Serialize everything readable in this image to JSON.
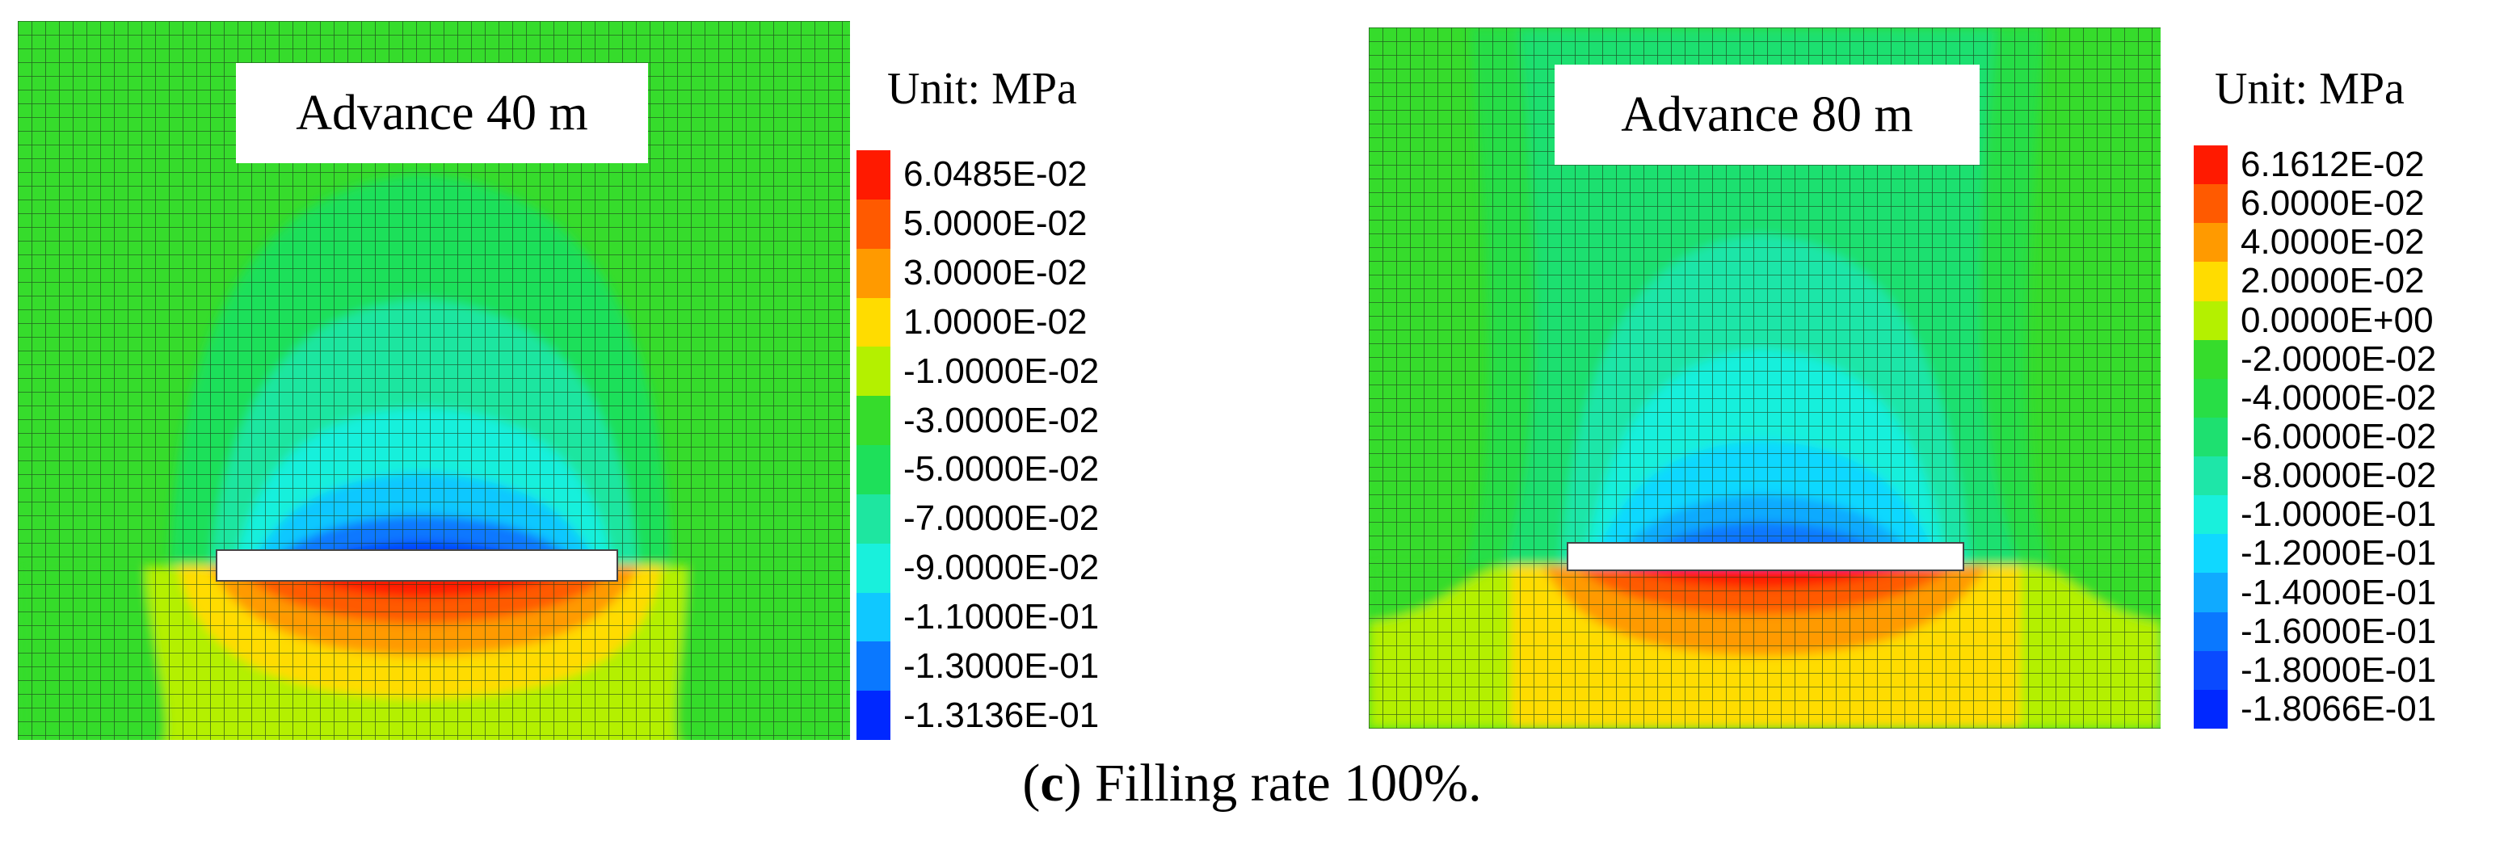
{
  "caption": {
    "marker": "c",
    "text": "Filling rate 100%."
  },
  "panels": [
    {
      "label": "Advance 40 m",
      "unit": "Unit: MPa",
      "legend": [
        {
          "value": "6.0485E-02",
          "color": "#ff1a00"
        },
        {
          "value": "5.0000E-02",
          "color": "#ff5a00"
        },
        {
          "value": "3.0000E-02",
          "color": "#ff9a00"
        },
        {
          "value": "1.0000E-02",
          "color": "#ffdc00"
        },
        {
          "value": "-1.0000E-02",
          "color": "#b4f000"
        },
        {
          "value": "-3.0000E-02",
          "color": "#36dc2c"
        },
        {
          "value": "-5.0000E-02",
          "color": "#1ee05a"
        },
        {
          "value": "-7.0000E-02",
          "color": "#1ee6a0"
        },
        {
          "value": "-9.0000E-02",
          "color": "#19f0dc"
        },
        {
          "value": "-1.1000E-01",
          "color": "#10c8ff"
        },
        {
          "value": "-1.3000E-01",
          "color": "#0a78ff"
        },
        {
          "value": "-1.3136E-01",
          "color": "#0028ff"
        }
      ]
    },
    {
      "label": "Advance 80 m",
      "unit": "Unit: MPa",
      "legend": [
        {
          "value": "6.1612E-02",
          "color": "#ff1a00"
        },
        {
          "value": "6.0000E-02",
          "color": "#ff5a00"
        },
        {
          "value": "4.0000E-02",
          "color": "#ff9a00"
        },
        {
          "value": "2.0000E-02",
          "color": "#ffdc00"
        },
        {
          "value": "0.0000E+00",
          "color": "#b4f000"
        },
        {
          "value": "-2.0000E-02",
          "color": "#36dc2c"
        },
        {
          "value": "-4.0000E-02",
          "color": "#28de46"
        },
        {
          "value": "-6.0000E-02",
          "color": "#1ee070"
        },
        {
          "value": "-8.0000E-02",
          "color": "#1ee6a8"
        },
        {
          "value": "-1.0000E-01",
          "color": "#19f0dc"
        },
        {
          "value": "-1.2000E-01",
          "color": "#10d8ff"
        },
        {
          "value": "-1.4000E-01",
          "color": "#10aaff"
        },
        {
          "value": "-1.6000E-01",
          "color": "#0a78ff"
        },
        {
          "value": "-1.8000E-01",
          "color": "#0a4aff"
        },
        {
          "value": "-1.8066E-01",
          "color": "#0028ff"
        }
      ]
    }
  ]
}
